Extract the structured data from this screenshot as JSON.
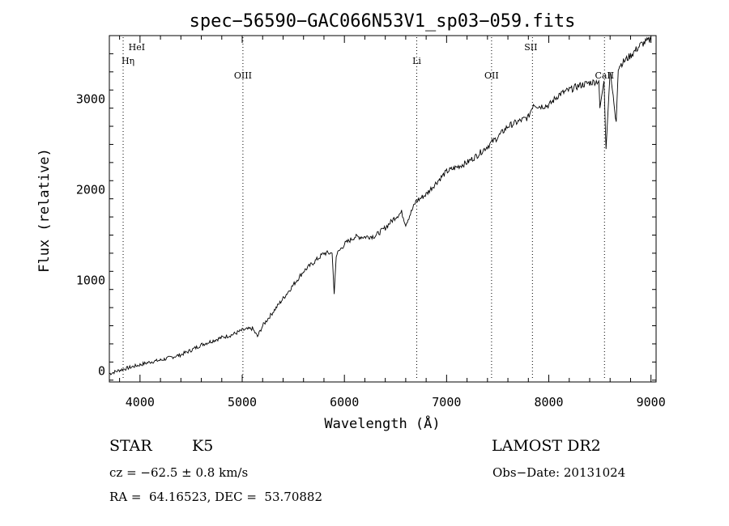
{
  "chart_data": {
    "type": "line",
    "title": "spec−56590−GAC066N53V1_sp03−059.fits",
    "xlabel": "Wavelength (Å)",
    "ylabel": "Flux (relative)",
    "xlim": [
      3700,
      9050
    ],
    "ylim": [
      -120,
      3700
    ],
    "xticks": [
      4000,
      5000,
      6000,
      7000,
      8000,
      9000
    ],
    "yticks": [
      0,
      1000,
      2000,
      3000
    ],
    "grid": false,
    "series": [
      {
        "x": [
          3700,
          3800,
          3900,
          4000,
          4100,
          4200,
          4300,
          4400,
          4500,
          4600,
          4700,
          4800,
          4900,
          5000,
          5100,
          5150,
          5200,
          5300,
          5400,
          5500,
          5600,
          5700,
          5800,
          5880,
          5900,
          5920,
          6000,
          6100,
          6200,
          6300,
          6400,
          6500,
          6560,
          6600,
          6700,
          6800,
          6900,
          7000,
          7100,
          7200,
          7300,
          7400,
          7500,
          7600,
          7700,
          7800,
          7850,
          7900,
          8000,
          8100,
          8200,
          8300,
          8400,
          8490,
          8500,
          8540,
          8560,
          8600,
          8660,
          8680,
          8700,
          8800,
          8900,
          9000
        ],
        "y": [
          -30,
          10,
          40,
          70,
          100,
          120,
          150,
          180,
          230,
          290,
          330,
          370,
          400,
          450,
          470,
          380,
          500,
          650,
          800,
          950,
          1100,
          1200,
          1300,
          1300,
          850,
          1280,
          1400,
          1480,
          1480,
          1490,
          1580,
          1700,
          1750,
          1620,
          1870,
          1950,
          2080,
          2200,
          2250,
          2300,
          2380,
          2480,
          2580,
          2700,
          2750,
          2800,
          2950,
          2920,
          2930,
          3050,
          3100,
          3150,
          3180,
          3200,
          2900,
          3200,
          2450,
          3300,
          2750,
          3350,
          3380,
          3480,
          3600,
          3660
        ]
      }
    ],
    "annotations": [
      {
        "label": "HeI",
        "x": 3889
      },
      {
        "label": "Hη",
        "x": 3835
      },
      {
        "label": "OIII",
        "x": 5007
      },
      {
        "label": "Li",
        "x": 6708
      },
      {
        "label": "OII",
        "x": 7440
      },
      {
        "label": "SII",
        "x": 7840
      },
      {
        "label": "CaII",
        "x": 8545
      }
    ]
  },
  "info": {
    "object_type": "STAR",
    "subclass": "K5",
    "survey": "LAMOST DR2",
    "redshift_text": "cz = −62.5 ± 0.8 km/s",
    "obs_date_text": "Obs−Date: 20131024",
    "coords_text": "RA =  64.16523, DEC =  53.70882"
  }
}
